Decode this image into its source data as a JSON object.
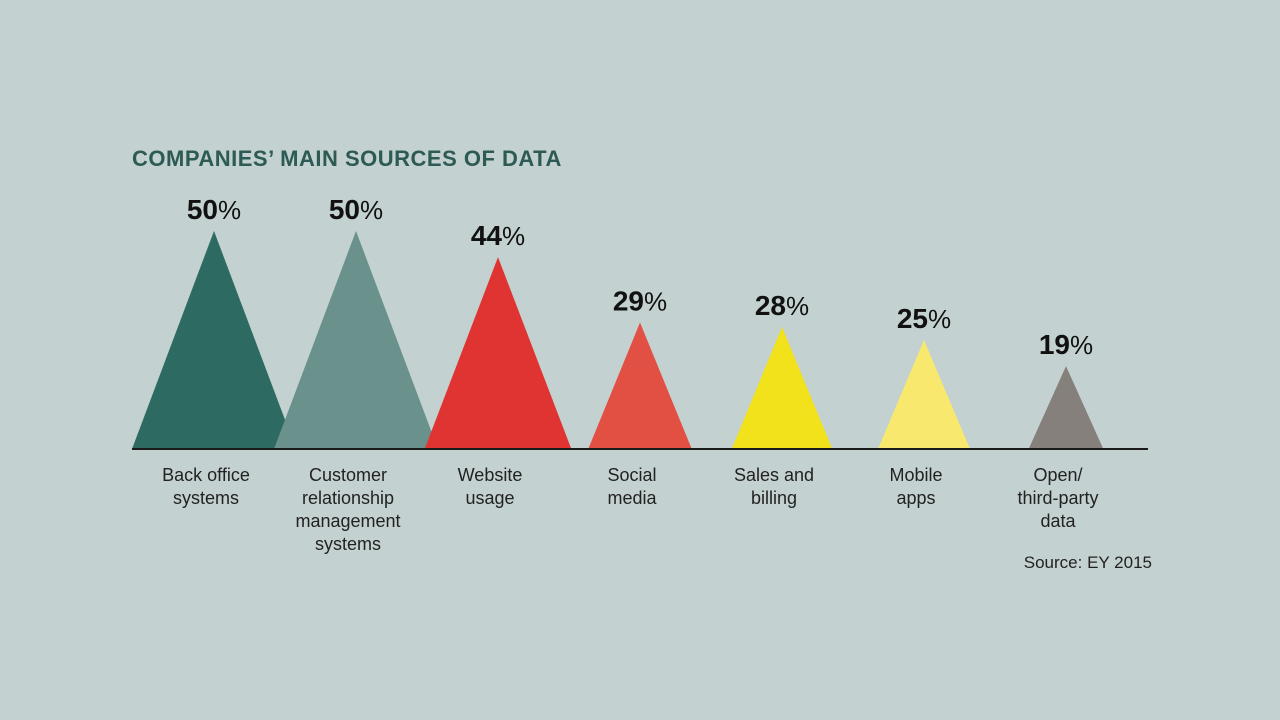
{
  "chart_data": {
    "type": "bar",
    "title": "COMPANIES’ MAIN SOURCES OF DATA",
    "categories": [
      [
        "Back office",
        "systems"
      ],
      [
        "Customer",
        "relationship",
        "management",
        "systems"
      ],
      [
        "Website",
        "usage"
      ],
      [
        "Social",
        "media"
      ],
      [
        "Sales and",
        "billing"
      ],
      [
        "Mobile",
        "apps"
      ],
      [
        "Open/",
        "third-party",
        "data"
      ]
    ],
    "values": [
      50,
      50,
      44,
      29,
      28,
      25,
      19
    ],
    "value_suffix": "%",
    "colors": [
      "#2d6b62",
      "#6a918c",
      "#e03432",
      "#e24f43",
      "#f2e21b",
      "#f8e96e",
      "#85807c"
    ],
    "ylim": [
      0,
      50
    ],
    "source": "Source: EY 2015"
  }
}
